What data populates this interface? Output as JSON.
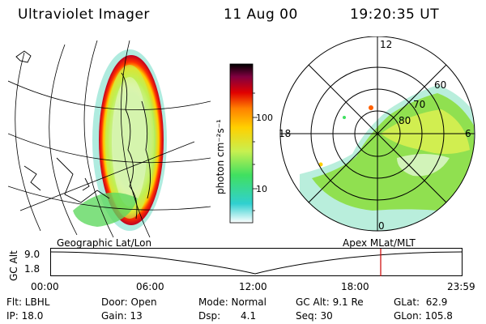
{
  "header": {
    "instrument": "Ultraviolet Imager",
    "date": "11 Aug 00",
    "time": "19:20:35 UT"
  },
  "colorbar": {
    "unit_label": "photon cm⁻²s⁻¹",
    "ticks": [
      "100",
      "10"
    ],
    "colors": [
      "#ffffff",
      "#30d0d0",
      "#40e060",
      "#c8f050",
      "#ffd000",
      "#ff8000",
      "#e00000",
      "#800040",
      "#000000"
    ]
  },
  "polar_plot": {
    "clock_labels": [
      "12",
      "18",
      "6",
      "0"
    ],
    "lat_labels": [
      "60",
      "70",
      "80"
    ]
  },
  "timeline": {
    "left_caption": "Geographic Lat/Lon",
    "right_caption": "Apex  MLat/MLT",
    "axis_title": "GC Alt",
    "y_ticks": [
      "9.0",
      "1.8"
    ],
    "x_ticks": [
      "00:00",
      "06:00",
      "12:00",
      "18:00",
      "23:59"
    ],
    "marker_color": "#cc0000"
  },
  "footer": {
    "filter": "Flt: LBHL",
    "ip": "IP: 18.0",
    "door": "Door: Open",
    "gain": "Gain: 13",
    "mode": "Mode: Normal",
    "dsp_label": "Dsp:",
    "dsp_value": "4.1",
    "gc_alt": "GC Alt: 9.1 Re",
    "seq": "Seq: 30",
    "glat": "GLat:  62.9",
    "glon": "GLon: 105.8"
  }
}
